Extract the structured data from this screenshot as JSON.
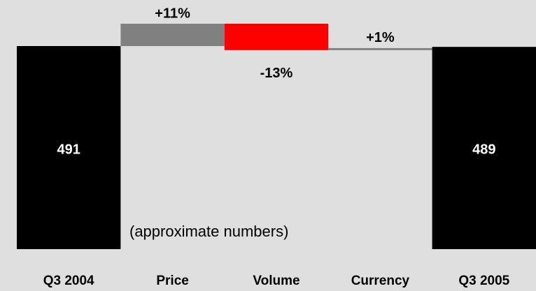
{
  "chart_data": {
    "type": "waterfall",
    "categories": [
      "Q3 2004",
      "Price",
      "Volume",
      "Currency",
      "Q3 2005"
    ],
    "values": [
      491,
      11,
      -13,
      1,
      489
    ],
    "value_labels": [
      "491",
      "+11%",
      "-13%",
      "+1%",
      "489"
    ],
    "colors": [
      "#000000",
      "#808080",
      "#ff0000",
      "#808080",
      "#000000"
    ],
    "annotation": "(approximate numbers)"
  }
}
